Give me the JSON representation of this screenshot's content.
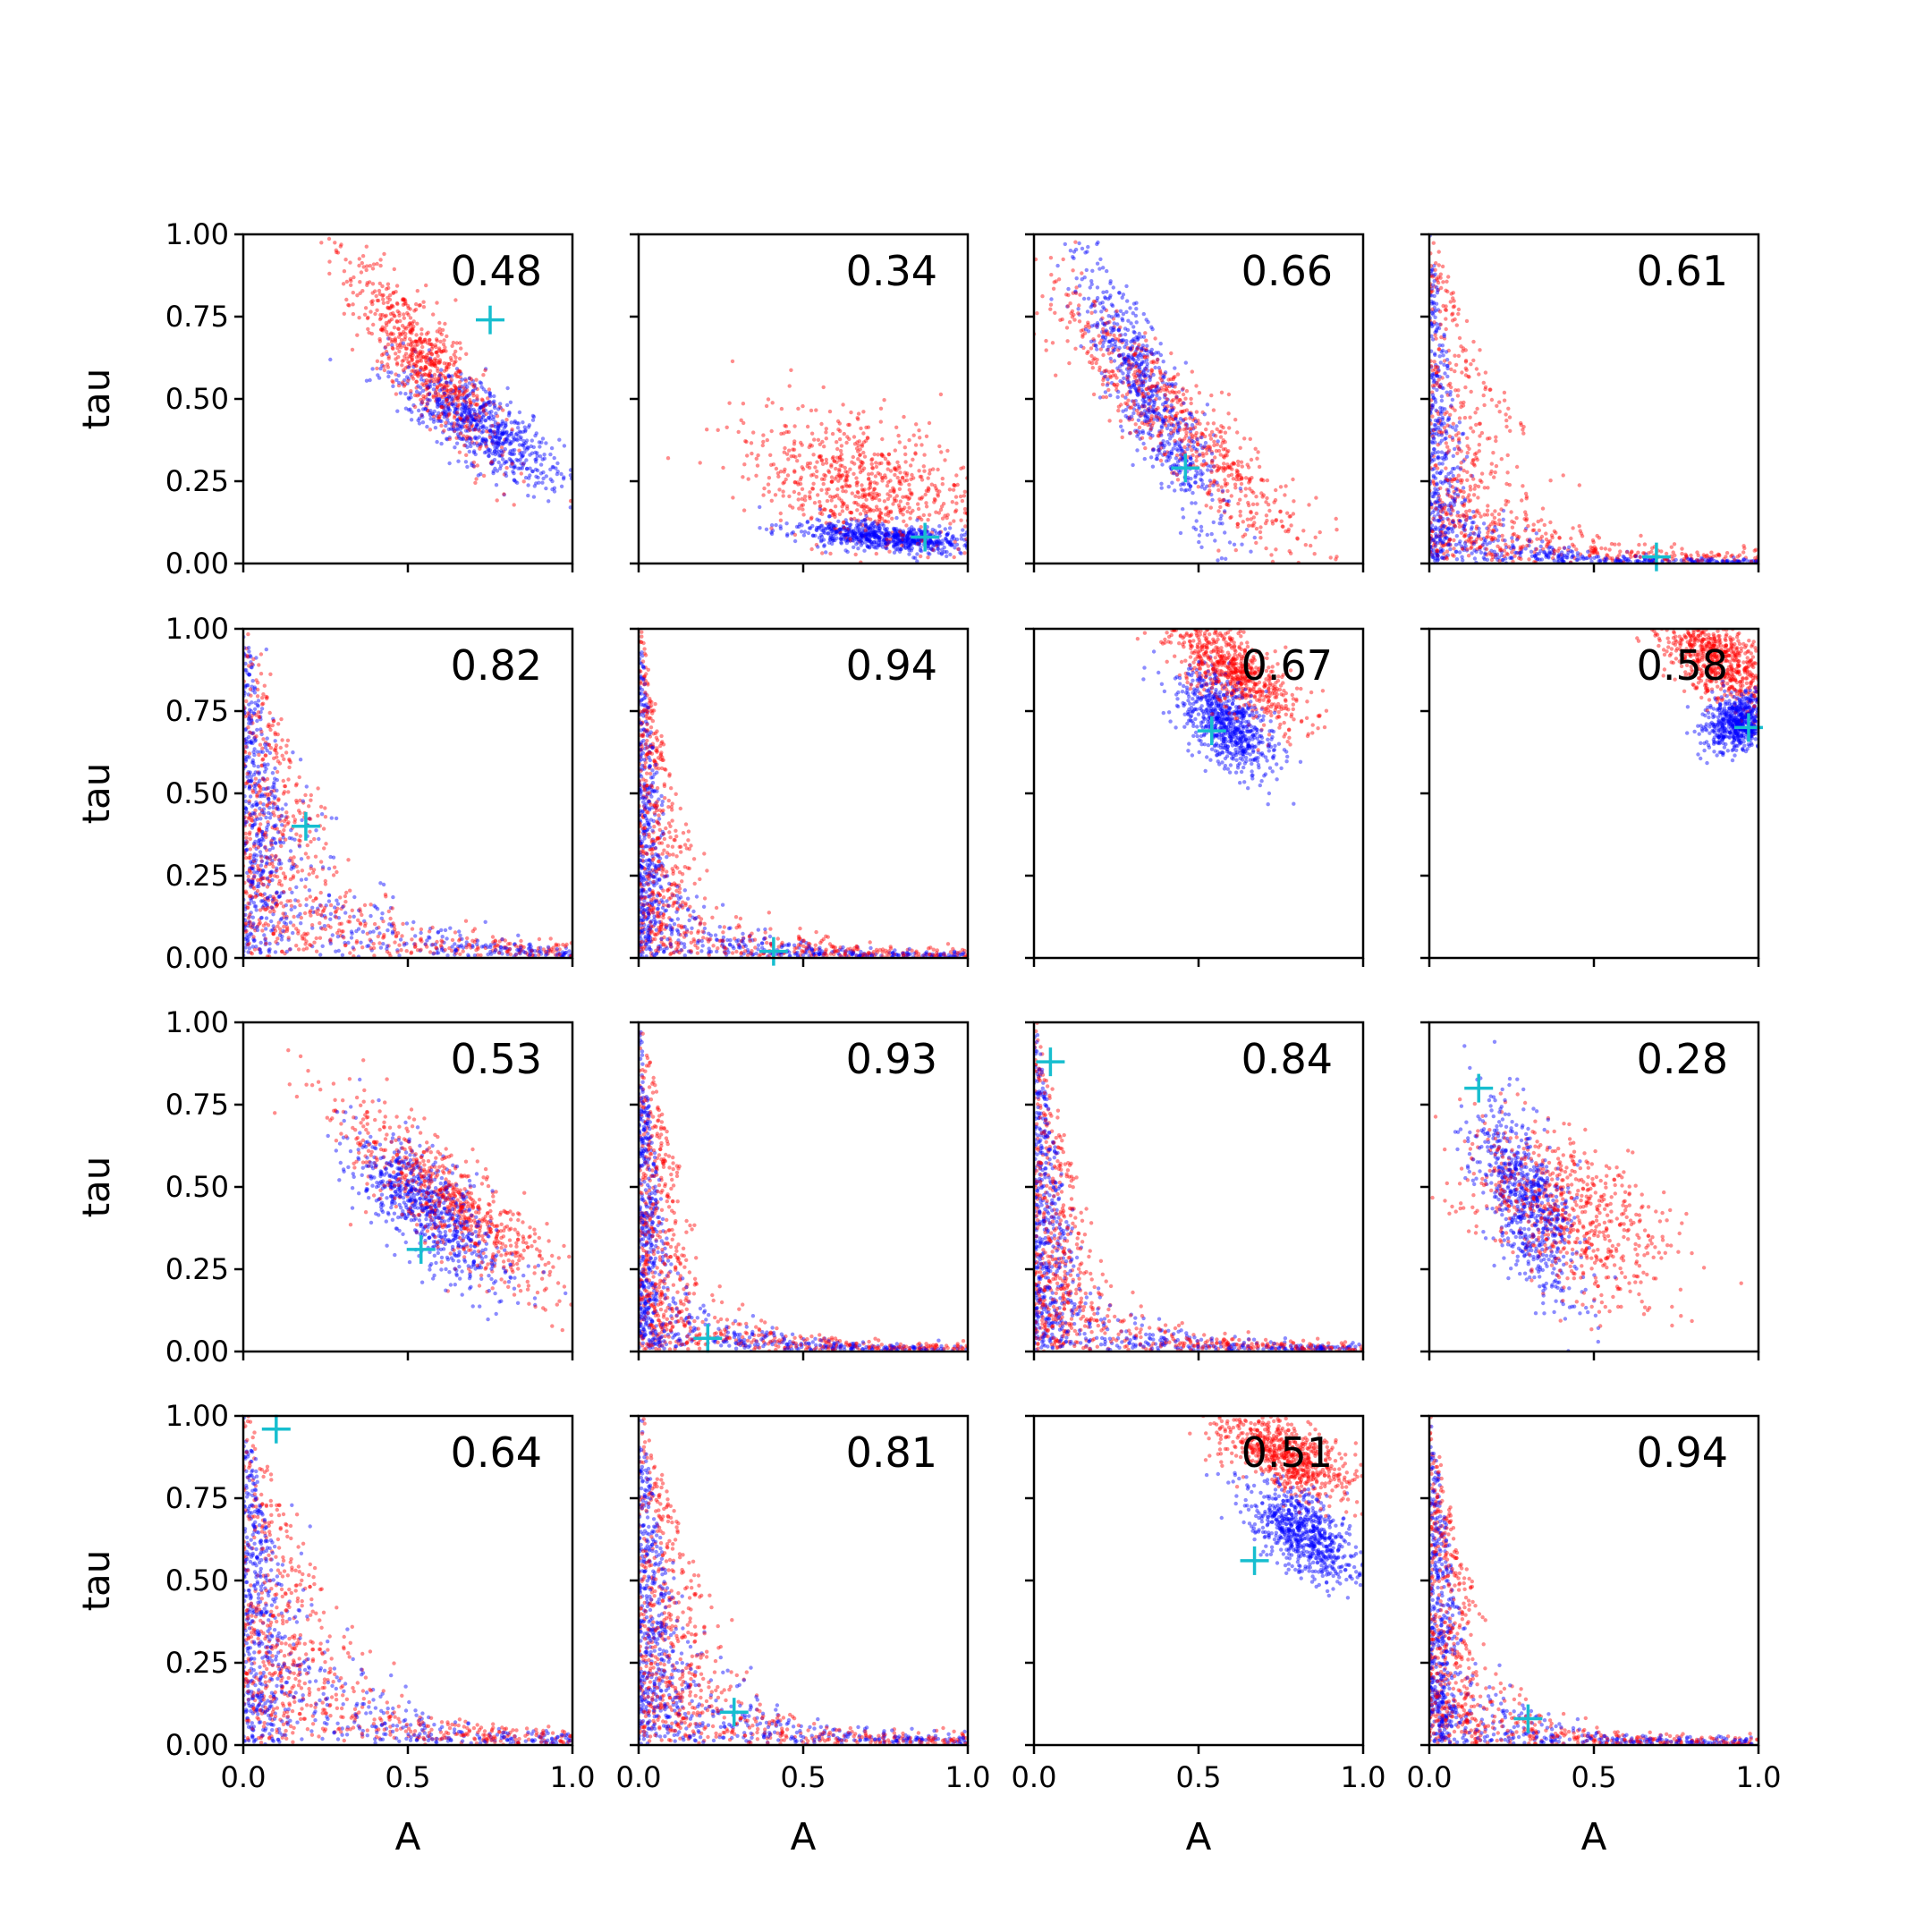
{
  "chart_data": {
    "type": "scatter",
    "layout": {
      "rows": 4,
      "cols": 4
    },
    "xlabel": "A",
    "ylabel": "tau",
    "xlim": [
      0,
      1
    ],
    "ylim": [
      0,
      1
    ],
    "xticks": [
      "0.0",
      "0.5",
      "1.0"
    ],
    "yticks": [
      "0.00",
      "0.25",
      "0.50",
      "0.75",
      "1.00"
    ],
    "grid": false,
    "colors": {
      "series_a": "#ff0000",
      "series_b": "#0000ff",
      "marker": "#17becf",
      "axes": "#000000"
    },
    "panels": [
      {
        "label": "0.48",
        "marker": [
          0.75,
          0.74
        ]
      },
      {
        "label": "0.34",
        "marker": [
          0.87,
          0.08
        ]
      },
      {
        "label": "0.66",
        "marker": [
          0.46,
          0.29
        ]
      },
      {
        "label": "0.61",
        "marker": [
          0.69,
          0.02
        ]
      },
      {
        "label": "0.82",
        "marker": [
          0.19,
          0.4
        ]
      },
      {
        "label": "0.94",
        "marker": [
          0.41,
          0.02
        ]
      },
      {
        "label": "0.67",
        "marker": [
          0.54,
          0.69
        ]
      },
      {
        "label": "0.58",
        "marker": [
          0.97,
          0.7
        ]
      },
      {
        "label": "0.53",
        "marker": [
          0.54,
          0.31
        ]
      },
      {
        "label": "0.93",
        "marker": [
          0.21,
          0.04
        ]
      },
      {
        "label": "0.84",
        "marker": [
          0.05,
          0.88
        ]
      },
      {
        "label": "0.28",
        "marker": [
          0.15,
          0.8
        ]
      },
      {
        "label": "0.64",
        "marker": [
          0.1,
          0.96
        ]
      },
      {
        "label": "0.81",
        "marker": [
          0.29,
          0.1
        ]
      },
      {
        "label": "0.51",
        "marker": [
          0.67,
          0.56
        ]
      },
      {
        "label": "0.94",
        "marker": [
          0.3,
          0.08
        ]
      }
    ]
  }
}
